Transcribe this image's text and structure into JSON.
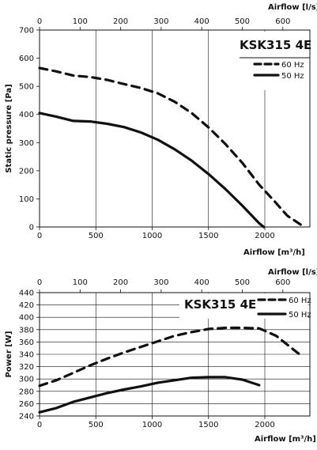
{
  "chart_data": [
    {
      "type": "line",
      "title": "KSK315 4E",
      "xlabel": "Airflow [m³/h]",
      "x2label": "Airflow [l/s]",
      "ylabel": "Static pressure [Pa]",
      "xlim": [
        0,
        2400
      ],
      "x2lim": [
        0,
        666.7
      ],
      "ylim": [
        0,
        700
      ],
      "xticks": [
        0,
        500,
        1000,
        1500,
        2000
      ],
      "x2ticks": [
        0,
        100,
        200,
        300,
        400,
        500,
        600
      ],
      "yticks": [
        0,
        100,
        200,
        300,
        400,
        500,
        600,
        700
      ],
      "grid": "x",
      "legend": "top-right",
      "series": [
        {
          "name": "60 Hz",
          "style": "dashed",
          "x": [
            0,
            150,
            300,
            450,
            600,
            750,
            900,
            1050,
            1200,
            1350,
            1500,
            1650,
            1800,
            1950,
            2100,
            2200,
            2350
          ],
          "y": [
            565,
            553,
            538,
            533,
            523,
            508,
            494,
            475,
            445,
            405,
            354,
            295,
            228,
            150,
            85,
            40,
            0
          ]
        },
        {
          "name": "50 Hz",
          "style": "solid",
          "x": [
            0,
            150,
            300,
            450,
            600,
            750,
            900,
            1050,
            1200,
            1350,
            1500,
            1650,
            1800,
            1950,
            1990
          ],
          "y": [
            405,
            392,
            377,
            375,
            367,
            355,
            336,
            310,
            276,
            236,
            188,
            135,
            76,
            13,
            0
          ]
        }
      ]
    },
    {
      "type": "line",
      "title": "KSK315 4E",
      "xlabel": "Airflow [m³/h]",
      "x2label": "Airflow [l/s]",
      "ylabel": "Power [W]",
      "xlim": [
        0,
        2400
      ],
      "x2lim": [
        0,
        666.7
      ],
      "ylim": [
        240,
        440
      ],
      "xticks": [
        0,
        500,
        1000,
        1500,
        2000
      ],
      "x2ticks": [
        0,
        100,
        200,
        300,
        400,
        500,
        600
      ],
      "yticks": [
        240,
        260,
        280,
        300,
        320,
        340,
        360,
        380,
        400,
        420,
        440
      ],
      "grid": "xy",
      "legend": "top-right",
      "series": [
        {
          "name": "60 Hz",
          "style": "dashed",
          "x": [
            0,
            150,
            300,
            450,
            600,
            750,
            900,
            1050,
            1200,
            1350,
            1500,
            1650,
            1800,
            1950,
            2100,
            2300
          ],
          "y": [
            289,
            298,
            310,
            322,
            333,
            343,
            352,
            361,
            370,
            376,
            381,
            383,
            383,
            382,
            370,
            341
          ]
        },
        {
          "name": "50 Hz",
          "style": "solid",
          "x": [
            0,
            150,
            300,
            450,
            600,
            750,
            900,
            1050,
            1200,
            1350,
            1500,
            1650,
            1800,
            1950
          ],
          "y": [
            246,
            253,
            263,
            270,
            277,
            283,
            288,
            294,
            298,
            302,
            303,
            303,
            299,
            290
          ]
        }
      ]
    }
  ]
}
